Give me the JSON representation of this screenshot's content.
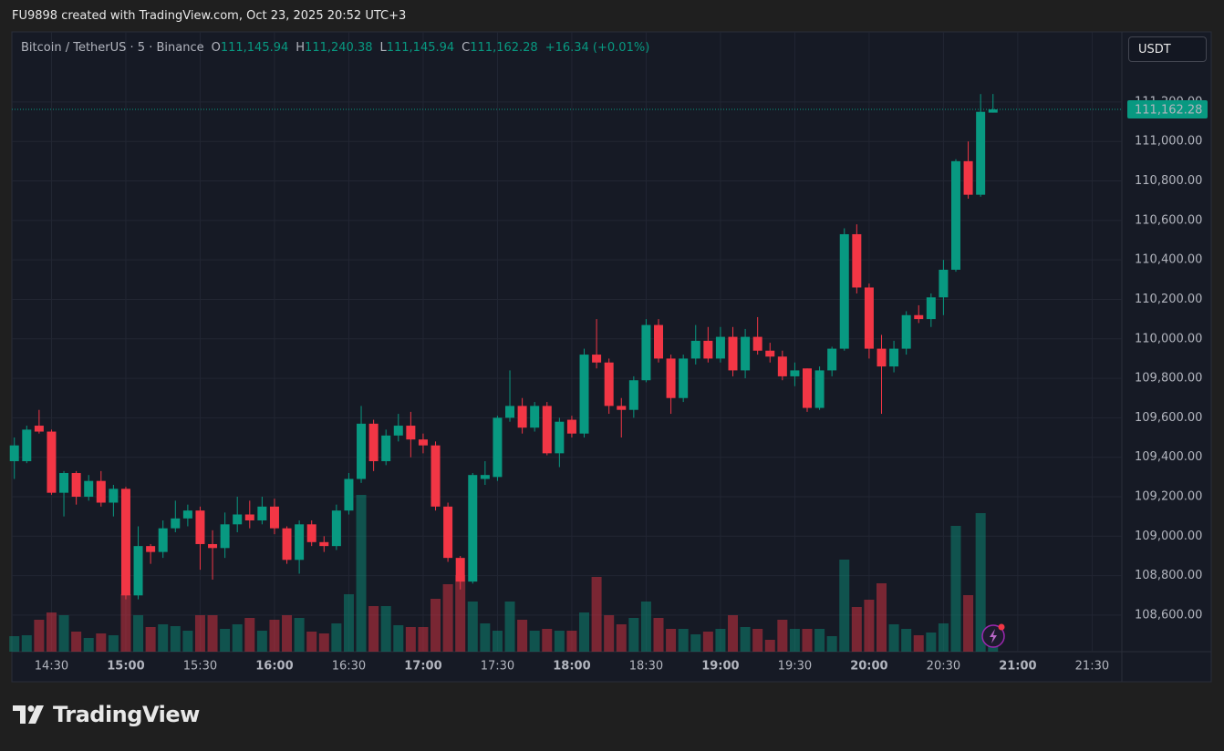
{
  "banner": "FU9898 created with TradingView.com, Oct 23, 2025 20:52 UTC+3",
  "footer": {
    "logo": "TradingView"
  },
  "chart_data": {
    "type": "candlestick",
    "symbol": "Bitcoin / TetherUS · 5 · Binance",
    "currency": "USDT",
    "ohlc_header": [
      {
        "prefix": "O",
        "value": "111,145.94"
      },
      {
        "prefix": "H",
        "value": "111,240.38"
      },
      {
        "prefix": "L",
        "value": "111,145.94"
      },
      {
        "prefix": "C",
        "value": "111,162.28"
      }
    ],
    "change": "+16.34 (+0.01%)",
    "last_price_label": "111,162.28",
    "up_color": "#089981",
    "down_color": "#f23645",
    "x": [
      "14:15",
      "14:20",
      "14:25",
      "14:30",
      "14:35",
      "14:40",
      "14:45",
      "14:50",
      "14:55",
      "15:00",
      "15:05",
      "15:10",
      "15:15",
      "15:20",
      "15:25",
      "15:30",
      "15:35",
      "15:40",
      "15:45",
      "15:50",
      "15:55",
      "16:00",
      "16:05",
      "16:10",
      "16:15",
      "16:20",
      "16:25",
      "16:30",
      "16:35",
      "16:40",
      "16:45",
      "16:50",
      "16:55",
      "17:00",
      "17:05",
      "17:10",
      "17:15",
      "17:20",
      "17:25",
      "17:30",
      "17:35",
      "17:40",
      "17:45",
      "17:50",
      "17:55",
      "18:00",
      "18:05",
      "18:10",
      "18:15",
      "18:20",
      "18:25",
      "18:30",
      "18:35",
      "18:40",
      "18:45",
      "18:50",
      "18:55",
      "19:00",
      "19:05",
      "19:10",
      "19:15",
      "19:20",
      "19:25",
      "19:30",
      "19:35",
      "19:40",
      "19:45",
      "19:50",
      "19:55",
      "20:00",
      "20:05",
      "20:10",
      "20:15",
      "20:20",
      "20:25",
      "20:30",
      "20:35",
      "20:40",
      "20:45",
      "20:50"
    ],
    "open": [
      109380,
      109380,
      109560,
      109530,
      109220,
      109320,
      109200,
      109280,
      109170,
      109240,
      108700,
      108950,
      108920,
      109040,
      109090,
      109130,
      108960,
      108940,
      109060,
      109110,
      109080,
      109150,
      109040,
      108880,
      109060,
      108970,
      108950,
      109130,
      109290,
      109570,
      109380,
      109510,
      109560,
      109490,
      109460,
      109150,
      108890,
      108770,
      109290,
      109300,
      109600,
      109660,
      109550,
      109660,
      109420,
      109590,
      109520,
      109920,
      109880,
      109660,
      109640,
      109790,
      110070,
      109900,
      109700,
      109900,
      109990,
      109900,
      110010,
      109840,
      110010,
      109940,
      109910,
      109810,
      109850,
      109650,
      109840,
      109950,
      110530,
      110260,
      109950,
      109860,
      109950,
      110120,
      110100,
      110210,
      110350,
      110900,
      110730,
      111145.94
    ],
    "high": [
      109500,
      109560,
      109640,
      109540,
      109330,
      109330,
      109310,
      109330,
      109260,
      109250,
      109050,
      108960,
      109080,
      109180,
      109160,
      109150,
      109030,
      109120,
      109200,
      109180,
      109200,
      109190,
      109050,
      109080,
      109080,
      109000,
      109160,
      109320,
      109660,
      109590,
      109540,
      109620,
      109630,
      109520,
      109480,
      109170,
      108900,
      109320,
      109380,
      109610,
      109840,
      109700,
      109680,
      109680,
      109600,
      109610,
      109950,
      110100,
      109900,
      109700,
      109810,
      110100,
      110100,
      109920,
      109920,
      110070,
      110060,
      110060,
      110060,
      110050,
      110110,
      109980,
      109940,
      109880,
      109850,
      109860,
      109960,
      110560,
      110580,
      110280,
      110020,
      109990,
      110140,
      110170,
      110230,
      110400,
      110910,
      111000,
      111240,
      111240.38
    ],
    "low": [
      109290,
      109370,
      109520,
      109210,
      109100,
      109160,
      109180,
      109150,
      109100,
      108680,
      108680,
      108860,
      108890,
      109020,
      109050,
      108830,
      108780,
      108890,
      109020,
      109040,
      109060,
      109010,
      108860,
      108810,
      108950,
      108920,
      108930,
      109110,
      109270,
      109330,
      109360,
      109480,
      109400,
      109420,
      109130,
      108870,
      108730,
      108760,
      109260,
      109280,
      109580,
      109520,
      109530,
      109410,
      109350,
      109500,
      109500,
      109850,
      109620,
      109500,
      109600,
      109780,
      109880,
      109620,
      109680,
      109870,
      109880,
      109880,
      109810,
      109800,
      109920,
      109880,
      109790,
      109760,
      109630,
      109640,
      109810,
      109940,
      110230,
      109900,
      109620,
      109830,
      109920,
      110080,
      110060,
      110120,
      110340,
      110710,
      110720,
      111145.94
    ],
    "close": [
      109460,
      109540,
      109530,
      109220,
      109320,
      109200,
      109280,
      109170,
      109240,
      108700,
      108950,
      108920,
      109040,
      109090,
      109130,
      108960,
      108940,
      109060,
      109110,
      109080,
      109150,
      109040,
      108880,
      109060,
      108970,
      108950,
      109130,
      109290,
      109570,
      109380,
      109510,
      109560,
      109490,
      109460,
      109150,
      108890,
      108770,
      109310,
      109310,
      109600,
      109660,
      109550,
      109660,
      109420,
      109580,
      109520,
      109920,
      109880,
      109660,
      109640,
      109790,
      110070,
      109900,
      109700,
      109900,
      109990,
      109900,
      110010,
      109840,
      110010,
      109940,
      109910,
      109810,
      109840,
      109650,
      109840,
      109950,
      110530,
      110260,
      109950,
      109860,
      109950,
      110120,
      110100,
      110210,
      110350,
      110900,
      110730,
      111150,
      111162.28
    ],
    "volume": [
      6.8,
      7.2,
      14,
      17.2,
      16,
      8.8,
      6,
      8,
      7.2,
      25.2,
      16,
      10.8,
      12,
      11.2,
      9.2,
      16,
      16,
      10,
      12,
      14.8,
      9.2,
      14,
      16,
      14.8,
      8.8,
      8,
      12.4,
      25.2,
      68.8,
      20,
      20,
      11.6,
      10.8,
      10.8,
      23.2,
      29.6,
      33.6,
      22,
      12.4,
      9.2,
      22,
      14,
      9.2,
      10,
      9.2,
      9.2,
      17.2,
      32.8,
      16,
      12,
      14.8,
      22,
      14.8,
      10,
      10,
      7.6,
      8.8,
      10,
      16,
      10.8,
      10,
      5.2,
      14,
      10,
      10,
      10,
      6.8,
      40.4,
      19.6,
      22.8,
      30,
      12,
      10,
      7.2,
      8.4,
      12.4,
      55.2,
      24.8,
      60.8,
      6
    ],
    "vlim": [
      0,
      100
    ],
    "xlim": [
      "14:14",
      "21:42"
    ],
    "xticks": [
      "14:30",
      "15:00",
      "15:30",
      "16:00",
      "16:30",
      "17:00",
      "17:30",
      "18:00",
      "18:30",
      "19:00",
      "19:30",
      "20:00",
      "20:30",
      "21:00",
      "21:30"
    ],
    "ylim": [
      108415,
      111555
    ],
    "yticks": [
      {
        "value": 108600,
        "label": "108,600.00"
      },
      {
        "value": 108800,
        "label": "108,800.00"
      },
      {
        "value": 109000,
        "label": "109,000.00"
      },
      {
        "value": 109200,
        "label": "109,200.00"
      },
      {
        "value": 109400,
        "label": "109,400.00"
      },
      {
        "value": 109600,
        "label": "109,600.00"
      },
      {
        "value": 109800,
        "label": "109,800.00"
      },
      {
        "value": 110000,
        "label": "110,000.00"
      },
      {
        "value": 110200,
        "label": "110,200.00"
      },
      {
        "value": 110400,
        "label": "110,400.00"
      },
      {
        "value": 110600,
        "label": "110,600.00"
      },
      {
        "value": 110800,
        "label": "110,800.00"
      },
      {
        "value": 111000,
        "label": "111,000.00"
      },
      {
        "value": 111200,
        "label": "111,200.00"
      }
    ],
    "grid": true
  }
}
